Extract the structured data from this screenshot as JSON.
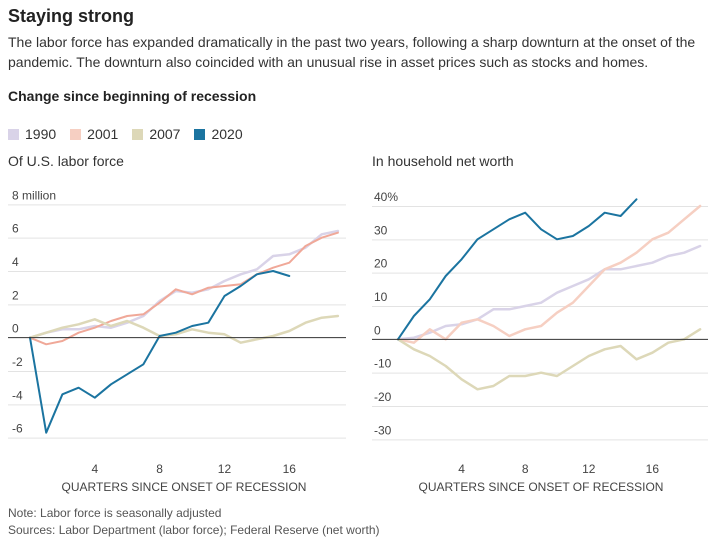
{
  "header": {
    "title": "Staying strong",
    "subtitle": "The labor force has expanded dramatically in the past two years, following a sharp downturn at the onset of the pandemic. The downturn also coincided with an unusual rise in asset prices such as stocks and homes.",
    "section_label": "Change since beginning of recession"
  },
  "legend": [
    {
      "name": "1990",
      "color": "#d9d3e8"
    },
    {
      "name": "2001",
      "color": "#f6cfc2"
    },
    {
      "name": "2007",
      "color": "#ddd8b8"
    },
    {
      "name": "2020",
      "color": "#1b74a0"
    }
  ],
  "footer": {
    "note": "Note: Labor force is seasonally adjusted",
    "source": "Sources: Labor Department (labor force); Federal Reserve (net worth)"
  },
  "chart_data": [
    {
      "type": "line",
      "title": "Of U.S. labor force",
      "xlabel": "QUARTERS SINCE ONSET OF RECESSION",
      "ylabel": "",
      "xlim": [
        0,
        19.5
      ],
      "ylim": [
        -6.5,
        8.5
      ],
      "xticks": [
        4,
        8,
        12,
        16
      ],
      "yticks": [
        {
          "value": 8,
          "label": "8 million"
        },
        {
          "value": 6,
          "label": "6"
        },
        {
          "value": 4,
          "label": "4"
        },
        {
          "value": 2,
          "label": "2"
        },
        {
          "value": 0,
          "label": "0"
        },
        {
          "value": -2,
          "label": "-2"
        },
        {
          "value": -4,
          "label": "-4"
        },
        {
          "value": -6,
          "label": "-6"
        }
      ],
      "series": [
        {
          "name": "1990",
          "color": "#d9d3e8",
          "width": 2.5,
          "x": [
            0,
            1,
            2,
            3,
            4,
            5,
            6,
            7,
            8,
            9,
            10,
            11,
            12,
            13,
            14,
            15,
            16,
            17,
            18,
            19
          ],
          "y": [
            0,
            0.3,
            0.5,
            0.5,
            0.7,
            0.6,
            0.9,
            1.3,
            2.2,
            2.8,
            2.7,
            2.9,
            3.4,
            3.8,
            4.1,
            4.9,
            5.0,
            5.4,
            6.2,
            6.4
          ]
        },
        {
          "name": "2001",
          "color": "#f0a898",
          "width": 2,
          "x": [
            0,
            1,
            2,
            3,
            4,
            5,
            6,
            7,
            8,
            9,
            10,
            11,
            12,
            13,
            14,
            15,
            16,
            17,
            18,
            19
          ],
          "y": [
            0,
            -0.4,
            -0.2,
            0.3,
            0.6,
            1.0,
            1.3,
            1.4,
            2.1,
            2.9,
            2.6,
            3.0,
            3.1,
            3.2,
            3.8,
            4.2,
            4.5,
            5.5,
            6.0,
            6.3
          ]
        },
        {
          "name": "2007",
          "color": "#ddd8b8",
          "width": 2.5,
          "x": [
            0,
            1,
            2,
            3,
            4,
            5,
            6,
            7,
            8,
            9,
            10,
            11,
            12,
            13,
            14,
            15,
            16,
            17,
            18,
            19
          ],
          "y": [
            0,
            0.3,
            0.6,
            0.8,
            1.1,
            0.7,
            1.0,
            0.6,
            0.1,
            0.2,
            0.5,
            0.3,
            0.2,
            -0.3,
            -0.1,
            0.1,
            0.4,
            0.9,
            1.2,
            1.3
          ]
        },
        {
          "name": "2020",
          "color": "#1b74a0",
          "width": 2,
          "x": [
            0,
            1,
            2,
            3,
            4,
            5,
            6,
            7,
            8,
            9,
            10,
            11,
            12,
            13,
            14,
            15,
            16
          ],
          "y": [
            0,
            -5.7,
            -3.4,
            -3.0,
            -3.6,
            -2.8,
            -2.2,
            -1.6,
            0.1,
            0.3,
            0.7,
            0.9,
            2.5,
            3.1,
            3.8,
            4.0,
            3.7
          ]
        }
      ]
    },
    {
      "type": "line",
      "title": "In household net worth",
      "xlabel": "QUARTERS SINCE ONSET OF RECESSION",
      "ylabel": "",
      "xlim": [
        0,
        19.5
      ],
      "ylim": [
        -32,
        43
      ],
      "xticks": [
        4,
        8,
        12,
        16
      ],
      "yticks": [
        {
          "value": 40,
          "label": "40%"
        },
        {
          "value": 30,
          "label": "30"
        },
        {
          "value": 20,
          "label": "20"
        },
        {
          "value": 10,
          "label": "10"
        },
        {
          "value": 0,
          "label": "0"
        },
        {
          "value": -10,
          "label": "-10"
        },
        {
          "value": -20,
          "label": "-20"
        },
        {
          "value": -30,
          "label": "-30"
        }
      ],
      "series": [
        {
          "name": "1990",
          "color": "#d9d3e8",
          "width": 2.5,
          "x": [
            0,
            1,
            2,
            3,
            4,
            5,
            6,
            7,
            8,
            9,
            10,
            11,
            12,
            13,
            14,
            15,
            16,
            17,
            18,
            19
          ],
          "y": [
            0,
            0.5,
            2,
            4,
            4.5,
            6,
            9,
            9,
            10,
            11,
            14,
            16,
            18,
            21,
            21,
            22,
            23,
            25,
            26,
            28
          ]
        },
        {
          "name": "2001",
          "color": "#f6cfc2",
          "width": 2.5,
          "x": [
            0,
            1,
            2,
            3,
            4,
            5,
            6,
            7,
            8,
            9,
            10,
            11,
            12,
            13,
            14,
            15,
            16,
            17,
            18,
            19
          ],
          "y": [
            0,
            -1,
            3,
            0,
            5,
            6,
            4,
            1,
            3,
            4,
            8,
            11,
            16,
            21,
            23,
            26,
            30,
            32,
            36,
            40
          ]
        },
        {
          "name": "2007",
          "color": "#ddd8b8",
          "width": 2.5,
          "x": [
            0,
            1,
            2,
            3,
            4,
            5,
            6,
            7,
            8,
            9,
            10,
            11,
            12,
            13,
            14,
            15,
            16,
            17,
            18,
            19
          ],
          "y": [
            0,
            -3,
            -5,
            -8,
            -12,
            -15,
            -14,
            -11,
            -11,
            -10,
            -11,
            -8,
            -5,
            -3,
            -2,
            -6,
            -4,
            -1,
            0,
            3
          ]
        },
        {
          "name": "2020",
          "color": "#1b74a0",
          "width": 2,
          "x": [
            0,
            1,
            2,
            3,
            4,
            5,
            6,
            7,
            8,
            9,
            10,
            11,
            12,
            13,
            14,
            15
          ],
          "y": [
            0,
            7,
            12,
            19,
            24,
            30,
            33,
            36,
            38,
            33,
            30,
            31,
            34,
            38,
            37,
            42
          ]
        }
      ]
    }
  ]
}
